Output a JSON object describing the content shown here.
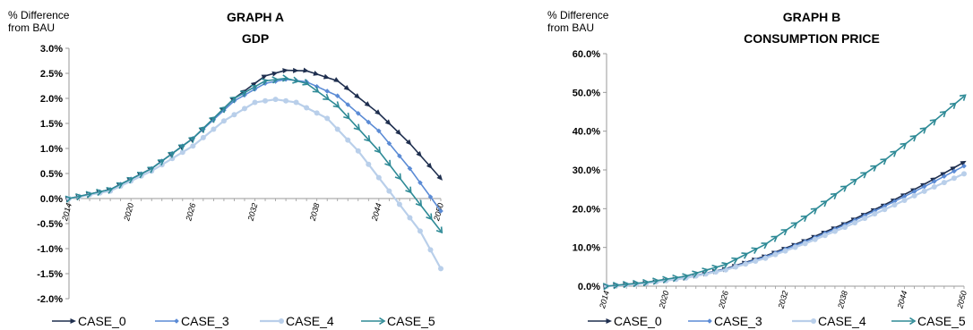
{
  "chart_data": [
    {
      "type": "line",
      "title_line1": "GRAPH A",
      "title_line2": "GDP",
      "ylabel": "% Difference\nfrom BAU",
      "xlabel": "",
      "ylim": [
        -2.0,
        3.0
      ],
      "yticks": [
        "3.0%",
        "2.5%",
        "2.0%",
        "1.5%",
        "1.0%",
        "0.5%",
        "0.0%",
        "-0.5%",
        "-1.0%",
        "-1.5%",
        "-2.0%"
      ],
      "ytick_values": [
        3.0,
        2.5,
        2.0,
        1.5,
        1.0,
        0.5,
        0.0,
        -0.5,
        -1.0,
        -1.5,
        -2.0
      ],
      "xticks": [
        "2014",
        "2020",
        "2026",
        "2032",
        "2038",
        "2044",
        "2050"
      ],
      "xrange": [
        2014,
        2050
      ],
      "grid": false,
      "legend_position": "bottom",
      "series": [
        {
          "name": "CASE_0",
          "marker": "arrow",
          "color": "#1f2f4f",
          "points": [
            [
              2014,
              0.0
            ],
            [
              2018,
              0.18
            ],
            [
              2022,
              0.6
            ],
            [
              2026,
              1.2
            ],
            [
              2030,
              2.0
            ],
            [
              2033,
              2.45
            ],
            [
              2035,
              2.56
            ],
            [
              2037,
              2.55
            ],
            [
              2040,
              2.35
            ],
            [
              2044,
              1.7
            ],
            [
              2047,
              1.1
            ],
            [
              2050,
              0.4
            ]
          ]
        },
        {
          "name": "CASE_3",
          "marker": "diamond",
          "color": "#5b8bd5",
          "points": [
            [
              2014,
              0.0
            ],
            [
              2018,
              0.18
            ],
            [
              2022,
              0.6
            ],
            [
              2026,
              1.2
            ],
            [
              2030,
              1.95
            ],
            [
              2033,
              2.3
            ],
            [
              2035,
              2.38
            ],
            [
              2037,
              2.33
            ],
            [
              2040,
              2.05
            ],
            [
              2044,
              1.35
            ],
            [
              2047,
              0.6
            ],
            [
              2050,
              -0.25
            ]
          ]
        },
        {
          "name": "CASE_4",
          "marker": "dot",
          "color": "#b9cfea",
          "points": [
            [
              2014,
              0.0
            ],
            [
              2018,
              0.15
            ],
            [
              2022,
              0.55
            ],
            [
              2026,
              1.05
            ],
            [
              2029,
              1.55
            ],
            [
              2032,
              1.92
            ],
            [
              2034,
              1.98
            ],
            [
              2036,
              1.92
            ],
            [
              2039,
              1.6
            ],
            [
              2042,
              0.95
            ],
            [
              2045,
              0.15
            ],
            [
              2048,
              -0.65
            ],
            [
              2050,
              -1.4
            ]
          ]
        },
        {
          "name": "CASE_5",
          "marker": "chevron",
          "color": "#2e8a96",
          "points": [
            [
              2014,
              0.0
            ],
            [
              2018,
              0.18
            ],
            [
              2022,
              0.6
            ],
            [
              2026,
              1.2
            ],
            [
              2030,
              2.0
            ],
            [
              2033,
              2.35
            ],
            [
              2035,
              2.4
            ],
            [
              2037,
              2.3
            ],
            [
              2040,
              1.85
            ],
            [
              2044,
              0.95
            ],
            [
              2047,
              0.15
            ],
            [
              2050,
              -0.65
            ]
          ]
        }
      ]
    },
    {
      "type": "line",
      "title_line1": "GRAPH B",
      "title_line2": "CONSUMPTION PRICE",
      "ylabel": "% Difference\nfrom BAU",
      "xlabel": "",
      "ylim": [
        0.0,
        60.0
      ],
      "yticks": [
        "60.0%",
        "50.0%",
        "40.0%",
        "30.0%",
        "20.0%",
        "10.0%",
        "0.0%"
      ],
      "ytick_values": [
        60,
        50,
        40,
        30,
        20,
        10,
        0
      ],
      "xticks": [
        "2014",
        "2020",
        "2026",
        "2032",
        "2038",
        "2044",
        "2050"
      ],
      "xrange": [
        2014,
        2050
      ],
      "grid": false,
      "legend_position": "bottom",
      "series": [
        {
          "name": "CASE_0",
          "marker": "arrow",
          "color": "#1f2f4f",
          "points": [
            [
              2014,
              0.0
            ],
            [
              2018,
              0.8
            ],
            [
              2022,
              2.2
            ],
            [
              2026,
              4.5
            ],
            [
              2030,
              7.8
            ],
            [
              2034,
              11.8
            ],
            [
              2038,
              16.2
            ],
            [
              2042,
              21.0
            ],
            [
              2046,
              26.3
            ],
            [
              2050,
              32.0
            ]
          ]
        },
        {
          "name": "CASE_3",
          "marker": "diamond",
          "color": "#5b8bd5",
          "points": [
            [
              2014,
              0.0
            ],
            [
              2018,
              0.8
            ],
            [
              2022,
              2.2
            ],
            [
              2026,
              4.4
            ],
            [
              2030,
              7.6
            ],
            [
              2034,
              11.5
            ],
            [
              2038,
              15.8
            ],
            [
              2042,
              20.6
            ],
            [
              2046,
              25.7
            ],
            [
              2050,
              31.0
            ]
          ]
        },
        {
          "name": "CASE_4",
          "marker": "dot",
          "color": "#b9cfea",
          "points": [
            [
              2014,
              0.0
            ],
            [
              2018,
              0.75
            ],
            [
              2022,
              2.1
            ],
            [
              2026,
              4.2
            ],
            [
              2030,
              7.2
            ],
            [
              2034,
              11.0
            ],
            [
              2038,
              15.2
            ],
            [
              2042,
              19.8
            ],
            [
              2046,
              24.5
            ],
            [
              2050,
              29.0
            ]
          ]
        },
        {
          "name": "CASE_5",
          "marker": "chevron",
          "color": "#2e8a96",
          "points": [
            [
              2014,
              0.0
            ],
            [
              2018,
              1.0
            ],
            [
              2022,
              2.6
            ],
            [
              2026,
              5.6
            ],
            [
              2030,
              10.8
            ],
            [
              2034,
              17.8
            ],
            [
              2038,
              25.5
            ],
            [
              2042,
              32.5
            ],
            [
              2046,
              40.5
            ],
            [
              2050,
              49.0
            ]
          ]
        }
      ]
    }
  ]
}
